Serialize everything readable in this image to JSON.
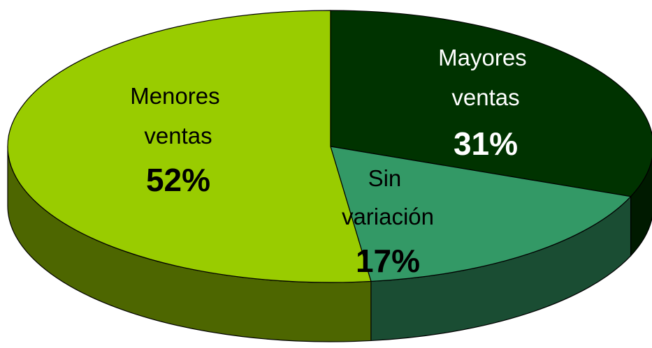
{
  "chart_data": {
    "type": "pie",
    "categories": [
      "Mayores ventas",
      "Sin variación",
      "Menores ventas"
    ],
    "values": [
      31,
      17,
      52
    ],
    "value_labels": [
      "31%",
      "17%",
      "52%"
    ],
    "colors": [
      "#003300",
      "#339966",
      "#99cc00"
    ]
  }
}
